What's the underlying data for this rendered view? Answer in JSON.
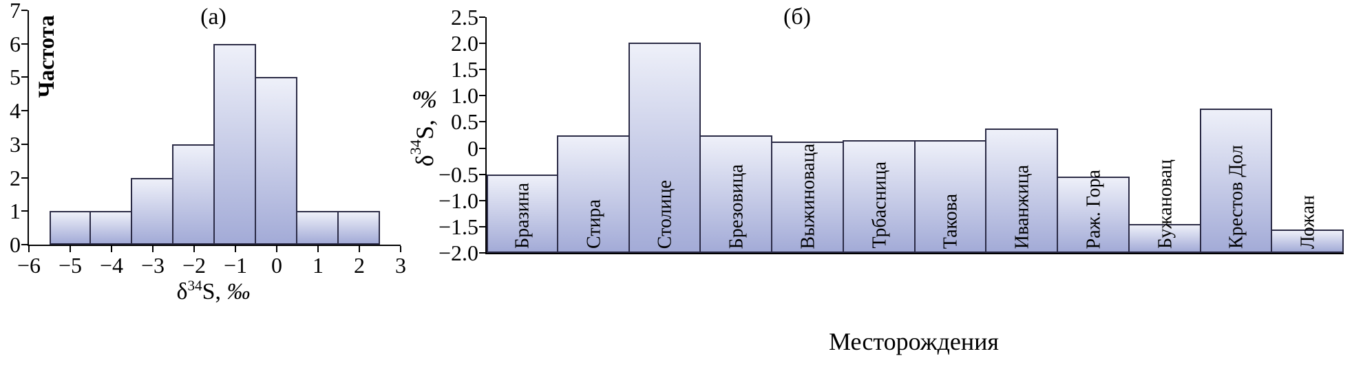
{
  "colors": {
    "background": "#ffffff",
    "bar_gradient_top": "#eef0f9",
    "bar_gradient_bottom": "#a3abd7",
    "bar_border": "#2a2a45",
    "axis": "#000000",
    "text": "#000000"
  },
  "chart_data": [
    {
      "type": "bar",
      "subtype": "histogram",
      "title": "(а)",
      "xlabel": "δ34S, ‰",
      "xlabel_parts": {
        "prefix": "δ",
        "sup": "34",
        "main": "S, ",
        "unit": "‰"
      },
      "ylabel": "Частота",
      "xlim": [
        -6,
        3
      ],
      "ylim": [
        0,
        7
      ],
      "grid": false,
      "legend": false,
      "bin_width": 1,
      "bin_centers": [
        -5,
        -4,
        -3,
        -2,
        -1,
        0,
        1,
        2
      ],
      "counts": [
        1,
        1,
        2,
        3,
        6,
        5,
        1,
        1
      ],
      "x_ticks": [
        {
          "v": -6,
          "label": "−6"
        },
        {
          "v": -5,
          "label": "−5"
        },
        {
          "v": -4,
          "label": "−4"
        },
        {
          "v": -3,
          "label": "−3"
        },
        {
          "v": -2,
          "label": "−2"
        },
        {
          "v": -1,
          "label": "−1"
        },
        {
          "v": 0,
          "label": "0"
        },
        {
          "v": 1,
          "label": "1"
        },
        {
          "v": 2,
          "label": "2"
        },
        {
          "v": 3,
          "label": "3"
        }
      ],
      "y_ticks": [
        {
          "v": 0,
          "label": "0"
        },
        {
          "v": 1,
          "label": "1"
        },
        {
          "v": 2,
          "label": "2"
        },
        {
          "v": 3,
          "label": "3"
        },
        {
          "v": 4,
          "label": "4"
        },
        {
          "v": 5,
          "label": "5"
        },
        {
          "v": 6,
          "label": "6"
        },
        {
          "v": 7,
          "label": "7"
        }
      ]
    },
    {
      "type": "bar",
      "title": "(б)",
      "xlabel": "Месторождения",
      "ylabel": "δ34S, ‰",
      "ylabel_parts": {
        "prefix": "δ",
        "sup": "34",
        "main": "S, ",
        "unit": "‰"
      },
      "ylim": [
        -2.0,
        2.5
      ],
      "bar_base": -2.0,
      "grid": false,
      "legend": false,
      "categories": [
        "Бразина",
        "Стира",
        "Столице",
        "Брезовица",
        "Выжиноваца",
        "Трбасница",
        "Такова",
        "Иванжица",
        "Раж. Гора",
        "Бужановац",
        "Крестов Дол",
        "Ложан"
      ],
      "values": [
        -0.5,
        0.25,
        2.02,
        0.25,
        0.13,
        0.15,
        0.15,
        0.38,
        -0.55,
        -1.45,
        0.75,
        -1.55
      ],
      "y_ticks": [
        {
          "v": 2.5,
          "label": "2.5"
        },
        {
          "v": 2.0,
          "label": "2.0"
        },
        {
          "v": 1.5,
          "label": "1.5"
        },
        {
          "v": 1.0,
          "label": "1.0"
        },
        {
          "v": 0.5,
          "label": "0.5"
        },
        {
          "v": 0,
          "label": "0"
        },
        {
          "v": -0.5,
          "label": "−0.5"
        },
        {
          "v": -1.0,
          "label": "−1.0"
        },
        {
          "v": -1.5,
          "label": "−1.5"
        },
        {
          "v": -2.0,
          "label": "−2.0"
        }
      ]
    }
  ]
}
